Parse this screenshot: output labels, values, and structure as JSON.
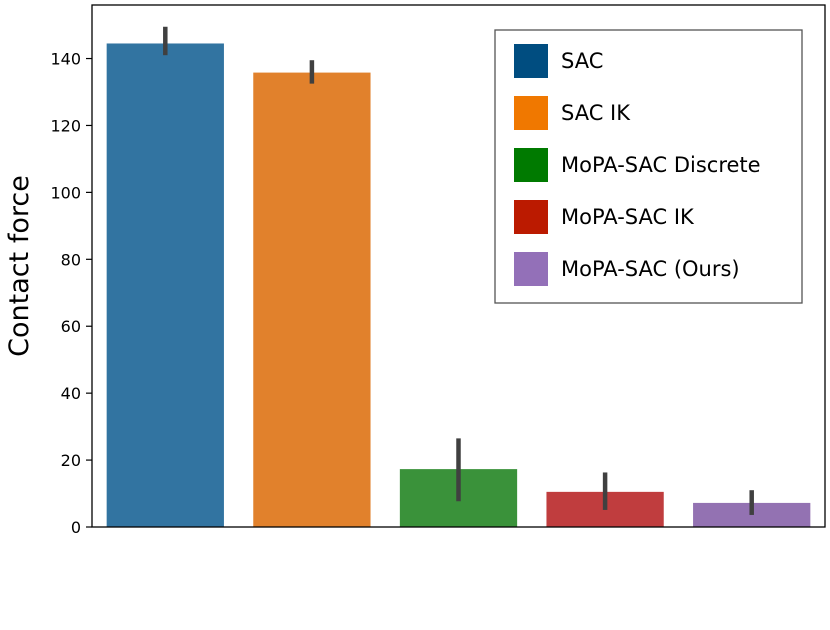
{
  "chart_data": {
    "type": "bar",
    "title": "",
    "xlabel": "",
    "ylabel": "Contact force",
    "ylim": [
      0,
      156
    ],
    "yticks": [
      0,
      20,
      40,
      60,
      80,
      100,
      120,
      140
    ],
    "grid": false,
    "legend_position": "top-right",
    "series": [
      {
        "name": "SAC",
        "value": 144.5,
        "err_low": 141,
        "err_high": 149.5,
        "color": "#3274a1",
        "legend_color": "#004d80"
      },
      {
        "name": "SAC IK",
        "value": 135.8,
        "err_low": 132.5,
        "err_high": 139.5,
        "color": "#e1812c",
        "legend_color": "#f07800"
      },
      {
        "name": "MoPA-SAC Discrete",
        "value": 17.3,
        "err_low": 7.7,
        "err_high": 26.5,
        "color": "#3a923a",
        "legend_color": "#007a00"
      },
      {
        "name": "MoPA-SAC IK",
        "value": 10.5,
        "err_low": 5.1,
        "err_high": 16.3,
        "color": "#c03d3e",
        "legend_color": "#bb1a00"
      },
      {
        "name": "MoPA-SAC (Ours)",
        "value": 7.2,
        "err_low": 3.6,
        "err_high": 11.0,
        "color": "#9372b2",
        "legend_color": "#9370b8"
      }
    ],
    "error_bar_color": "#404040"
  }
}
